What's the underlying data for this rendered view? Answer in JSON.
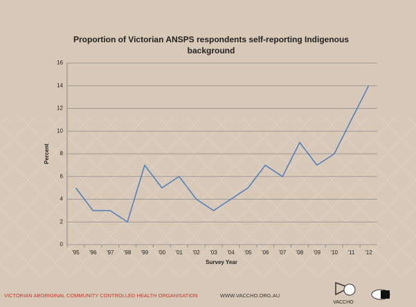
{
  "chart_data": {
    "type": "line",
    "title": "Proportion of Victorian ANSPS respondents self-reporting Indigenous background",
    "x_label": "Survey Year",
    "y_label": "Percent",
    "categories": [
      "'95",
      "'96",
      "'97",
      "'98",
      "'99",
      "'00",
      "'01",
      "'02",
      "'03",
      "'04",
      "'05",
      "'06",
      "'07",
      "'08",
      "'09",
      "'10",
      "'11",
      "'12"
    ],
    "series": [
      {
        "color": "#4a7ebb",
        "values": [
          5,
          3,
          3,
          2,
          7,
          5,
          6,
          4,
          3,
          4,
          5,
          7,
          6,
          9,
          7,
          8,
          11,
          14
        ]
      }
    ],
    "ylim": [
      0,
      16
    ],
    "yticks": [
      0,
      2,
      4,
      6,
      8,
      10,
      12,
      14,
      16
    ],
    "grid": true
  },
  "footer": {
    "organisation": "VICTORIAN ABORIGINAL COMMUNITY CONTROLLED HEALTH ORGANISATION",
    "url": "WWW.VACCHO.ORG.AU",
    "logo": "VACCHO"
  }
}
